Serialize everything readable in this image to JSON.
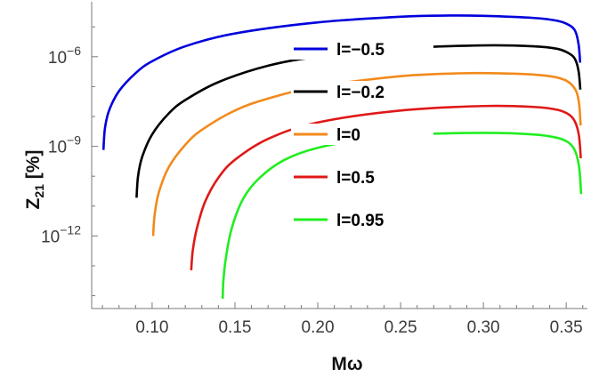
{
  "chart_data": {
    "type": "line",
    "xlabel_main": "M",
    "xlabel_sym": "ω",
    "ylabel_main": "Z",
    "ylabel_sub": "21",
    "ylabel_unit": " [%]",
    "x_ticks": [
      {
        "value": 0.1,
        "label": "0.10"
      },
      {
        "value": 0.15,
        "label": "0.15"
      },
      {
        "value": 0.2,
        "label": "0.20"
      },
      {
        "value": 0.25,
        "label": "0.25"
      },
      {
        "value": 0.3,
        "label": "0.30"
      },
      {
        "value": 0.35,
        "label": "0.35"
      }
    ],
    "y_ticks": [
      {
        "exp": -6,
        "base": "10",
        "sup": "−6"
      },
      {
        "exp": -9,
        "base": "10",
        "sup": "−9"
      },
      {
        "exp": -12,
        "base": "10",
        "sup": "−12"
      }
    ],
    "xlim": [
      0.0635,
      0.3628
    ],
    "ylim_log10": [
      -14.43,
      -4.16
    ],
    "y_scale": "log",
    "legend_position": "center-right",
    "series": [
      {
        "name": "l=−0.5",
        "color": "#0000dd",
        "x": [
          0.0706,
          0.0715,
          0.074,
          0.08,
          0.09,
          0.1,
          0.12,
          0.15,
          0.2,
          0.25,
          0.28,
          0.3,
          0.33,
          0.345,
          0.352,
          0.3555,
          0.3575,
          0.3584
        ],
        "log10y": [
          -9.12,
          -8.4,
          -7.8,
          -7.15,
          -6.55,
          -6.15,
          -5.65,
          -5.22,
          -4.85,
          -4.66,
          -4.62,
          -4.63,
          -4.7,
          -4.8,
          -4.95,
          -5.15,
          -5.6,
          -6.2
        ]
      },
      {
        "name": "l=−0.2",
        "color": "#000000",
        "x": [
          0.0906,
          0.0915,
          0.094,
          0.1,
          0.11,
          0.12,
          0.14,
          0.17,
          0.2,
          0.25,
          0.3,
          0.33,
          0.345,
          0.352,
          0.3555,
          0.3575,
          0.3585
        ],
        "log10y": [
          -10.72,
          -10.0,
          -9.35,
          -8.6,
          -7.9,
          -7.45,
          -6.85,
          -6.3,
          -6.0,
          -5.72,
          -5.62,
          -5.65,
          -5.74,
          -5.9,
          -6.1,
          -6.5,
          -7.1
        ]
      },
      {
        "name": "l=0",
        "color": "#f28a1c",
        "x": [
          0.1006,
          0.1015,
          0.104,
          0.11,
          0.12,
          0.13,
          0.15,
          0.17,
          0.2,
          0.25,
          0.29,
          0.32,
          0.34,
          0.35,
          0.3555,
          0.3577,
          0.3587
        ],
        "log10y": [
          -12.0,
          -11.3,
          -10.55,
          -9.7,
          -8.95,
          -8.45,
          -7.8,
          -7.4,
          -7.0,
          -6.65,
          -6.55,
          -6.57,
          -6.65,
          -6.8,
          -7.1,
          -7.55,
          -8.3
        ]
      },
      {
        "name": "l=0.5",
        "color": "#e01818",
        "x": [
          0.1236,
          0.1245,
          0.127,
          0.132,
          0.14,
          0.15,
          0.17,
          0.2,
          0.25,
          0.3,
          0.33,
          0.345,
          0.352,
          0.3555,
          0.3577,
          0.3588
        ],
        "log10y": [
          -13.15,
          -12.5,
          -11.75,
          -10.85,
          -10.05,
          -9.45,
          -8.75,
          -8.2,
          -7.8,
          -7.65,
          -7.68,
          -7.78,
          -7.95,
          -8.2,
          -8.65,
          -9.4
        ]
      },
      {
        "name": "l=0.95",
        "color": "#20ee20",
        "x": [
          0.1426,
          0.143,
          0.1445,
          0.148,
          0.155,
          0.165,
          0.18,
          0.2,
          0.23,
          0.26,
          0.3,
          0.33,
          0.345,
          0.352,
          0.3557,
          0.3579,
          0.359
        ],
        "log10y": [
          -14.1,
          -13.5,
          -12.75,
          -11.75,
          -10.75,
          -10.05,
          -9.45,
          -9.05,
          -8.75,
          -8.6,
          -8.55,
          -8.6,
          -8.72,
          -8.9,
          -9.2,
          -9.75,
          -10.6
        ]
      }
    ]
  }
}
